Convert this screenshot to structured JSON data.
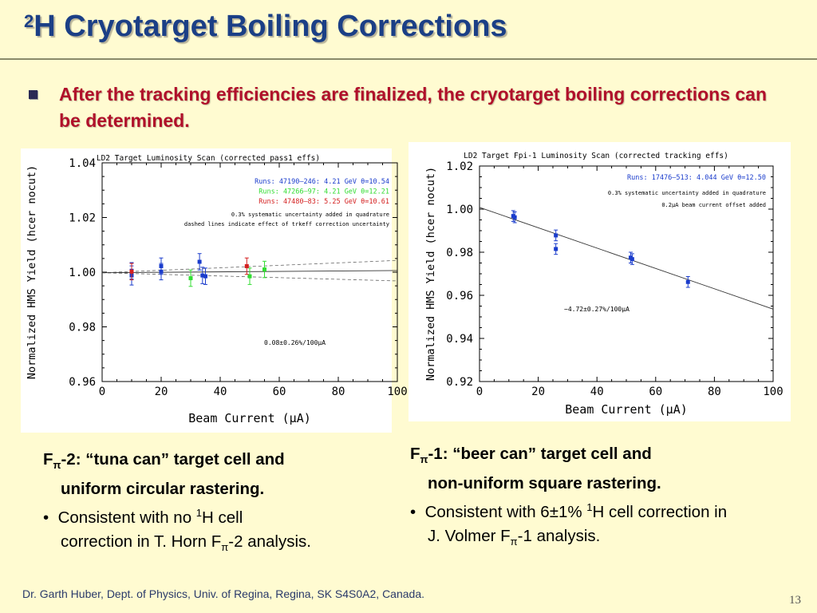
{
  "slide": {
    "title_sup": "2",
    "title_rest": "H Cryotarget Boiling Corrections",
    "intro": "After the tracking efficiencies are finalized, the cryotarget boiling corrections can be determined.",
    "footer": "Dr. Garth Huber, Dept. of Physics, Univ. of Regina, Regina, SK S4S0A2, Canada.",
    "page_number": "13"
  },
  "captions": {
    "left": {
      "head_F": "F",
      "head_pi": "π",
      "head_rest": "-2: “tuna can” target cell and",
      "head_line2": "uniform circular rastering.",
      "bullet_mark": "•",
      "bullet_a": "Consistent with no ",
      "bullet_sup": "1",
      "bullet_b": "H cell",
      "bullet_line2a": "correction in T. Horn F",
      "bullet_pi": "π",
      "bullet_line2b": "-2 analysis."
    },
    "right": {
      "head_F": "F",
      "head_pi": "π",
      "head_rest": "-1: “beer can” target cell and",
      "head_line2": "non-uniform square rastering.",
      "bullet_mark": "•",
      "bullet_a": "Consistent with 6±1% ",
      "bullet_sup": "1",
      "bullet_b": "H cell correction in",
      "bullet_line2a": "J. Volmer F",
      "bullet_pi": "π",
      "bullet_line2b": "-1 analysis."
    }
  },
  "chart_data": [
    {
      "type": "scatter",
      "title": "LD2 Target Luminosity Scan (corrected pass1 effs)",
      "xlabel": "Beam Current (μA)",
      "ylabel": "Normalized HMS Yield (hcer nocut)",
      "xlim": [
        0,
        100
      ],
      "ylim": [
        0.96,
        1.04
      ],
      "xticks": [
        "0",
        "20",
        "40",
        "60",
        "80",
        "100"
      ],
      "yticks": [
        "0.96",
        "0.98",
        "1.00",
        "1.02",
        "1.04"
      ],
      "legend": [
        {
          "text": "Runs: 47190–246: 4.21 GeV  θ=10.54",
          "color": "#1a3ccc"
        },
        {
          "text": "Runs: 47266–97: 4.21 GeV  θ=12.21",
          "color": "#33dd33"
        },
        {
          "text": "Runs: 47480–83: 5.25 GeV  θ=10.61",
          "color": "#d42020"
        }
      ],
      "notes": [
        "0.3% systematic uncertainty added in quadrature",
        "dashed lines indicate effect of trkeff correction uncertainty"
      ],
      "fit_label": "0.08±0.26%/100μA",
      "fit": {
        "y0": 0.9998,
        "slope_per_100": 0.0008,
        "x_range": [
          0,
          100
        ]
      },
      "fit_band": [
        {
          "y0": 0.9998,
          "slope_per_100": 0.0045
        },
        {
          "y0": 0.9998,
          "slope_per_100": -0.003
        }
      ],
      "series": [
        {
          "color": "#1a3ccc",
          "points": [
            {
              "x": 10,
              "y": 0.9988,
              "err": 0.0035
            },
            {
              "x": 10,
              "y": 1.0005,
              "err": 0.003
            },
            {
              "x": 20,
              "y": 1.0022,
              "err": 0.003
            },
            {
              "x": 20,
              "y": 1.0002,
              "err": 0.003
            },
            {
              "x": 33,
              "y": 1.0038,
              "err": 0.003
            },
            {
              "x": 34,
              "y": 0.9988,
              "err": 0.003
            },
            {
              "x": 35,
              "y": 0.9985,
              "err": 0.003
            }
          ]
        },
        {
          "color": "#33dd33",
          "points": [
            {
              "x": 30,
              "y": 0.9978,
              "err": 0.003
            },
            {
              "x": 50,
              "y": 0.9985,
              "err": 0.003
            },
            {
              "x": 55,
              "y": 1.001,
              "err": 0.003
            }
          ]
        },
        {
          "color": "#d42020",
          "points": [
            {
              "x": 10,
              "y": 1.0002,
              "err": 0.003
            },
            {
              "x": 49,
              "y": 1.0022,
              "err": 0.003
            }
          ]
        }
      ]
    },
    {
      "type": "scatter",
      "title": "LD2 Target Fpi-1 Luminosity Scan (corrected tracking effs)",
      "xlabel": "Beam Current (μA)",
      "ylabel": "Normalized HMS Yield (hcer nocut)",
      "xlim": [
        0,
        100
      ],
      "ylim": [
        0.92,
        1.02
      ],
      "xticks": [
        "0",
        "20",
        "40",
        "60",
        "80",
        "100"
      ],
      "yticks": [
        "0.92",
        "0.94",
        "0.96",
        "0.98",
        "1.00",
        "1.02"
      ],
      "legend": [
        {
          "text": "Runs: 17476–513: 4.044 GeV  θ=12.50",
          "color": "#1a3ccc"
        }
      ],
      "notes": [
        "0.3% systematic uncertainty added in quadrature",
        "0.2μA beam current offset added"
      ],
      "fit_label": "−4.72±0.27%/100μA",
      "fit": {
        "y0": 1.0008,
        "slope_per_100": -0.0472,
        "x_range": [
          0,
          100
        ]
      },
      "series": [
        {
          "color": "#1a3ccc",
          "points": [
            {
              "x": 11.5,
              "y": 0.9968,
              "err": 0.0025
            },
            {
              "x": 12,
              "y": 0.9962,
              "err": 0.0025
            },
            {
              "x": 26,
              "y": 0.9878,
              "err": 0.0025
            },
            {
              "x": 26,
              "y": 0.9815,
              "err": 0.0025
            },
            {
              "x": 51.5,
              "y": 0.9775,
              "err": 0.0025
            },
            {
              "x": 52,
              "y": 0.9768,
              "err": 0.0025
            },
            {
              "x": 71,
              "y": 0.9662,
              "err": 0.0025
            }
          ]
        }
      ]
    }
  ]
}
